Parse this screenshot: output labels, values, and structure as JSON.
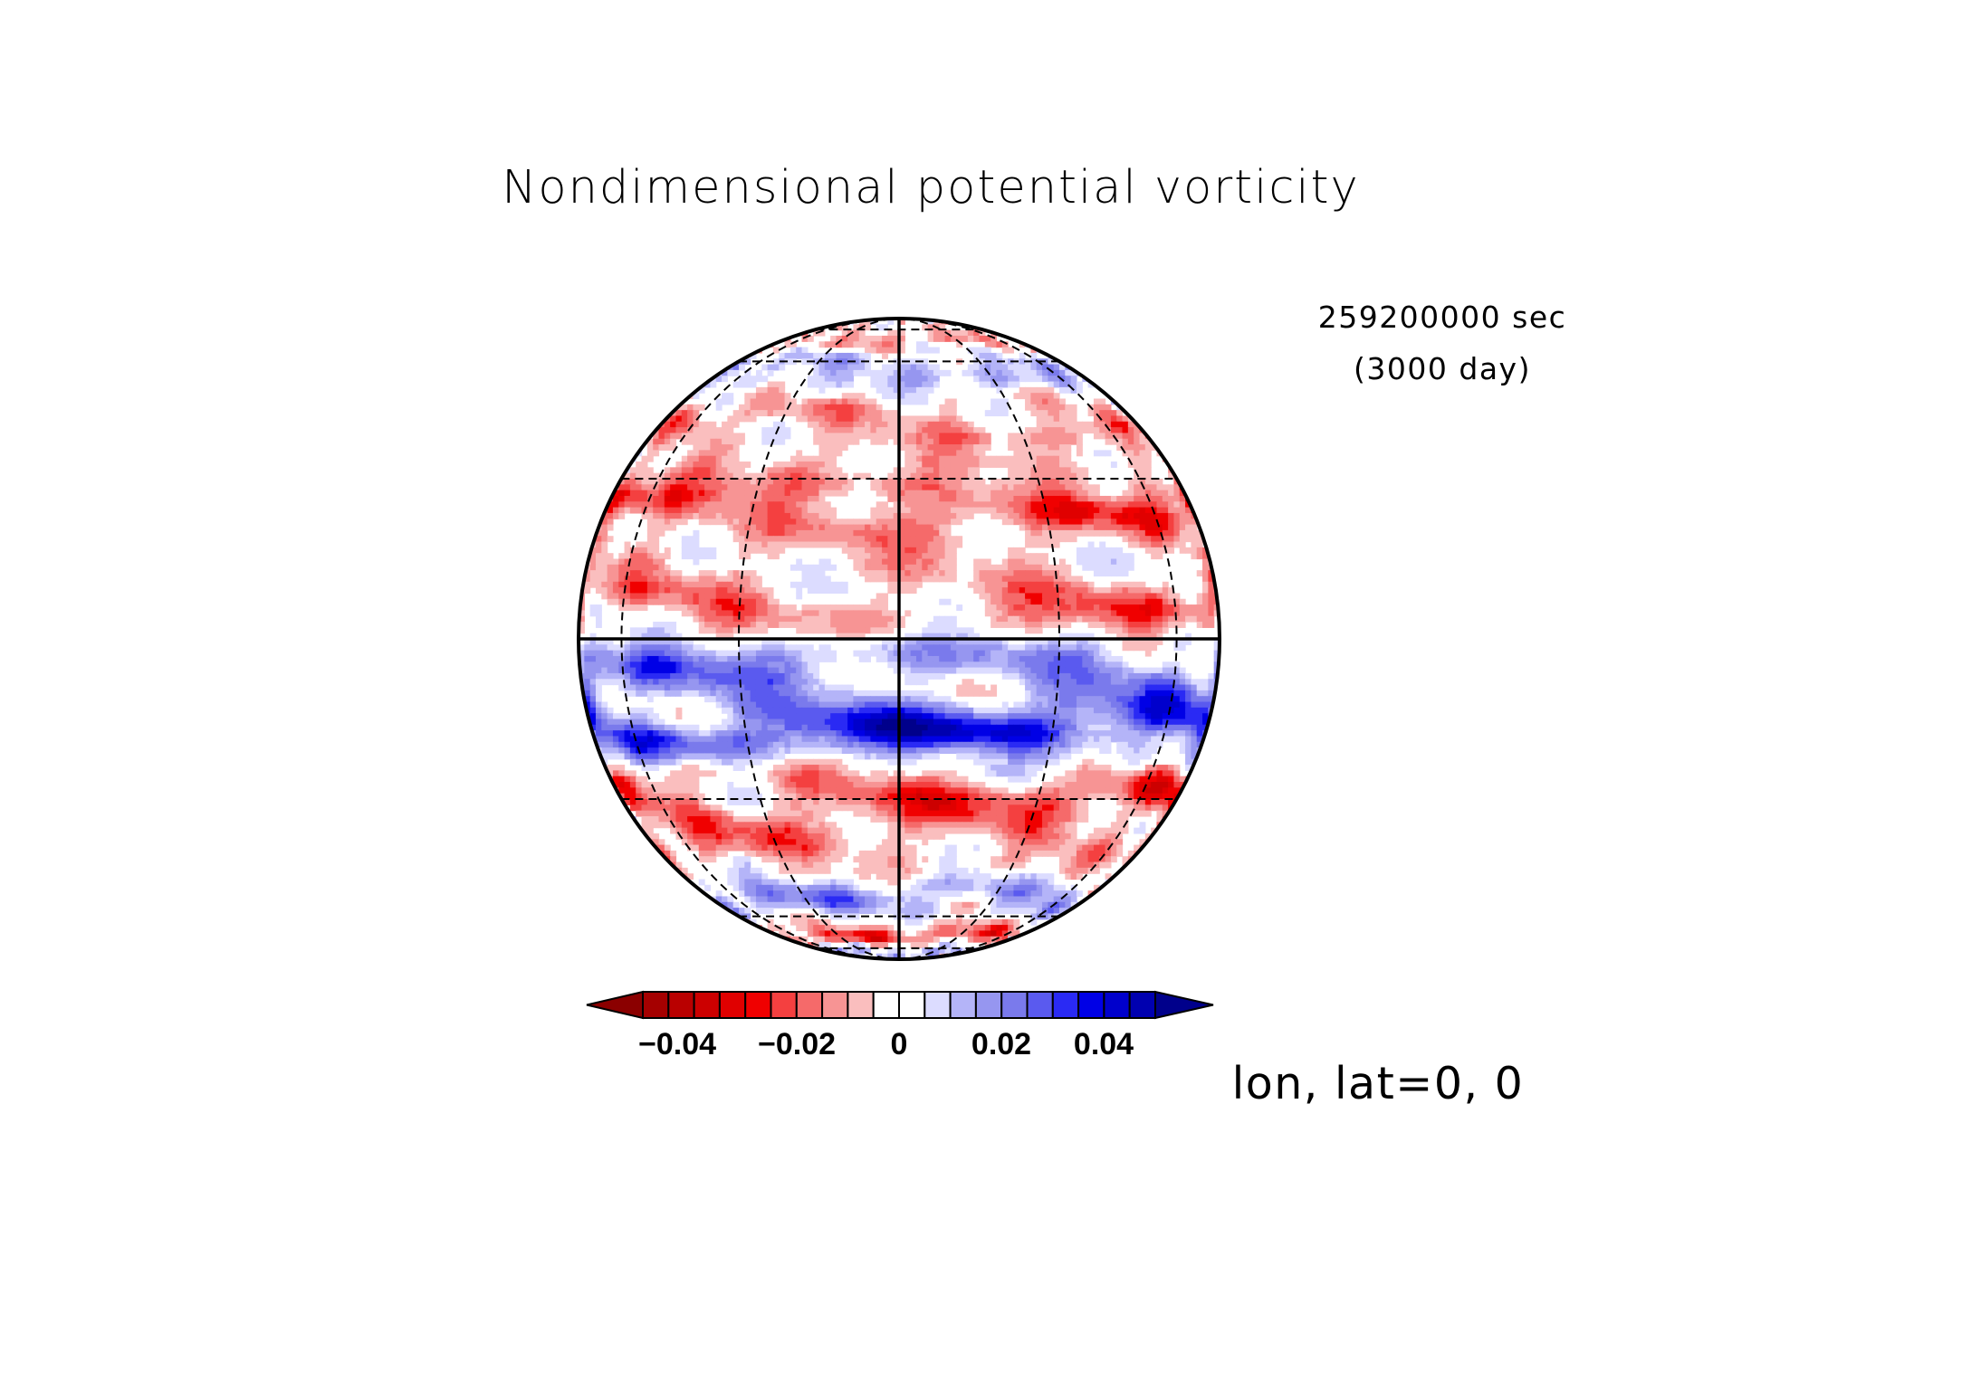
{
  "chart_data": {
    "type": "heatmap",
    "title": "Nondimensional potential vorticity",
    "time_seconds": "259200000 sec",
    "time_days": "(3000 day)",
    "projection_label": "lon, lat=0, 0",
    "projection": "orthographic",
    "center_lon": 0,
    "center_lat": 0,
    "gridlines": {
      "lon_step_deg": 30,
      "lat_step_deg": 30
    },
    "colorbar": {
      "orientation": "horizontal",
      "extend": "both",
      "min": -0.05,
      "max": 0.05,
      "step": 0.005,
      "tick_values": [
        -0.04,
        -0.02,
        0,
        0.02,
        0.04
      ],
      "tick_labels": [
        "−0.04",
        "−0.02",
        "0",
        "0.02",
        "0.04"
      ],
      "colors": [
        "#8b0000",
        "#a50000",
        "#b90000",
        "#cc0000",
        "#e00000",
        "#f00000",
        "#f44040",
        "#f56a6a",
        "#f79494",
        "#fabebe",
        "#ffffff",
        "#ffffff",
        "#dcdcff",
        "#b4b4f8",
        "#9696f0",
        "#7a7aec",
        "#5a5aef",
        "#2a2af4",
        "#0000e6",
        "#0000cc",
        "#0000b0",
        "#00008b"
      ]
    },
    "zonal_bands": [
      {
        "lat": 70,
        "value": -0.015
      },
      {
        "lat": 58,
        "value": 0.02
      },
      {
        "lat": 42,
        "value": -0.02
      },
      {
        "lat": 25,
        "value": -0.035
      },
      {
        "lat": 6,
        "value": -0.025
      },
      {
        "lat": -5,
        "value": 0.03
      },
      {
        "lat": -17,
        "value": 0.045
      },
      {
        "lat": -28,
        "value": -0.03
      },
      {
        "lat": -40,
        "value": -0.02
      },
      {
        "lat": -55,
        "value": 0.025
      },
      {
        "lat": -68,
        "value": -0.03
      },
      {
        "lat": -78,
        "value": 0.03
      }
    ]
  }
}
